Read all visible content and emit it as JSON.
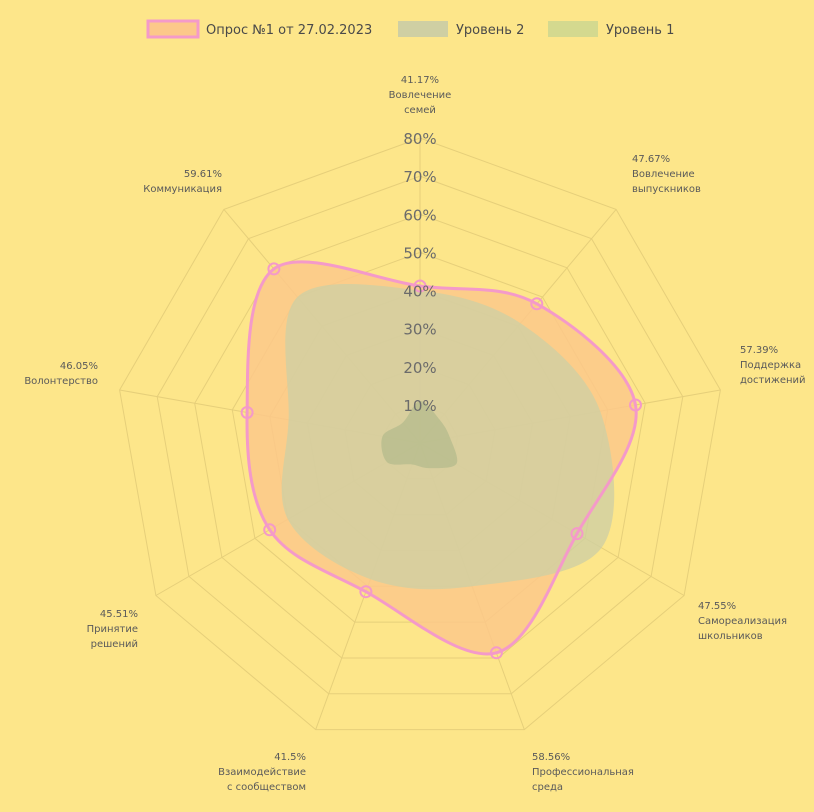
{
  "chart_data": {
    "type": "radar",
    "title": "",
    "rlim": [
      0,
      80
    ],
    "ticks": [
      "10%",
      "20%",
      "30%",
      "40%",
      "50%",
      "60%",
      "70%",
      "80%"
    ],
    "tick_values": [
      10,
      20,
      30,
      40,
      50,
      60,
      70,
      80
    ],
    "grid": true,
    "legend_position": "top-center",
    "axes": [
      {
        "value_label": "41.17%",
        "label_lines": [
          "Вовлечение",
          "семей"
        ]
      },
      {
        "value_label": "47.67%",
        "label_lines": [
          "Вовлечение",
          "выпускников"
        ]
      },
      {
        "value_label": "57.39%",
        "label_lines": [
          "Поддержка",
          "достижений"
        ]
      },
      {
        "value_label": "47.55%",
        "label_lines": [
          "Самореализация",
          "школьников"
        ]
      },
      {
        "value_label": "58.56%",
        "label_lines": [
          "Профессиональная",
          "среда"
        ]
      },
      {
        "value_label": "41.5%",
        "label_lines": [
          "Взаимодействие",
          "с сообществом"
        ]
      },
      {
        "value_label": "45.51%",
        "label_lines": [
          "Принятие",
          "решений"
        ]
      },
      {
        "value_label": "46.05%",
        "label_lines": [
          "Волонтерство"
        ]
      },
      {
        "value_label": "59.61%",
        "label_lines": [
          "Коммуникация"
        ]
      }
    ],
    "series": [
      {
        "name": "Уровень 1",
        "color": "#d4d98f",
        "values": [
          11,
          8,
          8,
          11,
          7,
          6,
          10,
          10,
          7
        ]
      },
      {
        "name": "Уровень 2",
        "color": "#cfcfa3",
        "values": [
          40,
          41,
          48,
          55,
          40,
          38,
          40,
          35,
          50
        ]
      },
      {
        "name": "Опрос №1 от 27.02.2023",
        "color": "#f49ac9",
        "fill": "#fcc88a",
        "values": [
          41.17,
          47.67,
          57.39,
          47.55,
          58.56,
          41.5,
          45.51,
          46.05,
          59.61
        ]
      }
    ]
  }
}
